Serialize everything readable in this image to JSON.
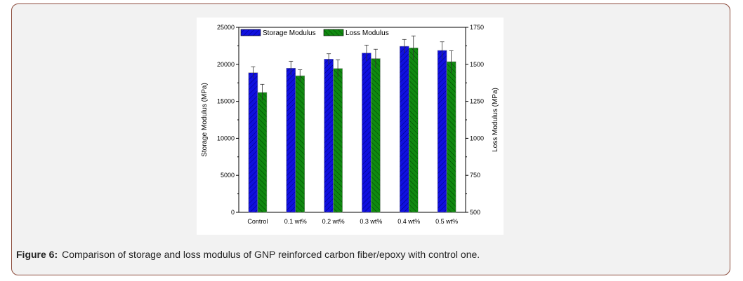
{
  "caption": {
    "label": "Figure 6:",
    "text": "Comparison of storage and loss modulus of GNP reinforced carbon fiber/epoxy with control one."
  },
  "chart_data": {
    "type": "bar",
    "categories": [
      "Control",
      "0.1 wt%",
      "0.2 wt%",
      "0.3 wt%",
      "0.4 wt%",
      "0.5 wt%"
    ],
    "ylabel": "Storage Modulus (MPa)",
    "y2label": "Loss Modulus (MPa)",
    "ylim": [
      0,
      25000
    ],
    "y2lim": [
      500,
      1750
    ],
    "yticks": [
      0,
      5000,
      10000,
      15000,
      20000,
      25000
    ],
    "y2ticks": [
      500,
      750,
      1000,
      1250,
      1500,
      1750
    ],
    "legend_placement": "top-left",
    "grid": false,
    "series": [
      {
        "name": "Storage Modulus",
        "axis": "left",
        "color": "#1010e0",
        "values": [
          18870,
          19480,
          20710,
          21530,
          22440,
          21880
        ],
        "errors": [
          800,
          940,
          720,
          1070,
          920,
          1160
        ]
      },
      {
        "name": "Loss Modulus",
        "axis": "right",
        "color": "#108a10",
        "values": [
          1310,
          1423,
          1472,
          1539,
          1611,
          1518
        ],
        "errors": [
          55,
          40,
          59,
          63,
          81,
          74
        ]
      }
    ]
  }
}
